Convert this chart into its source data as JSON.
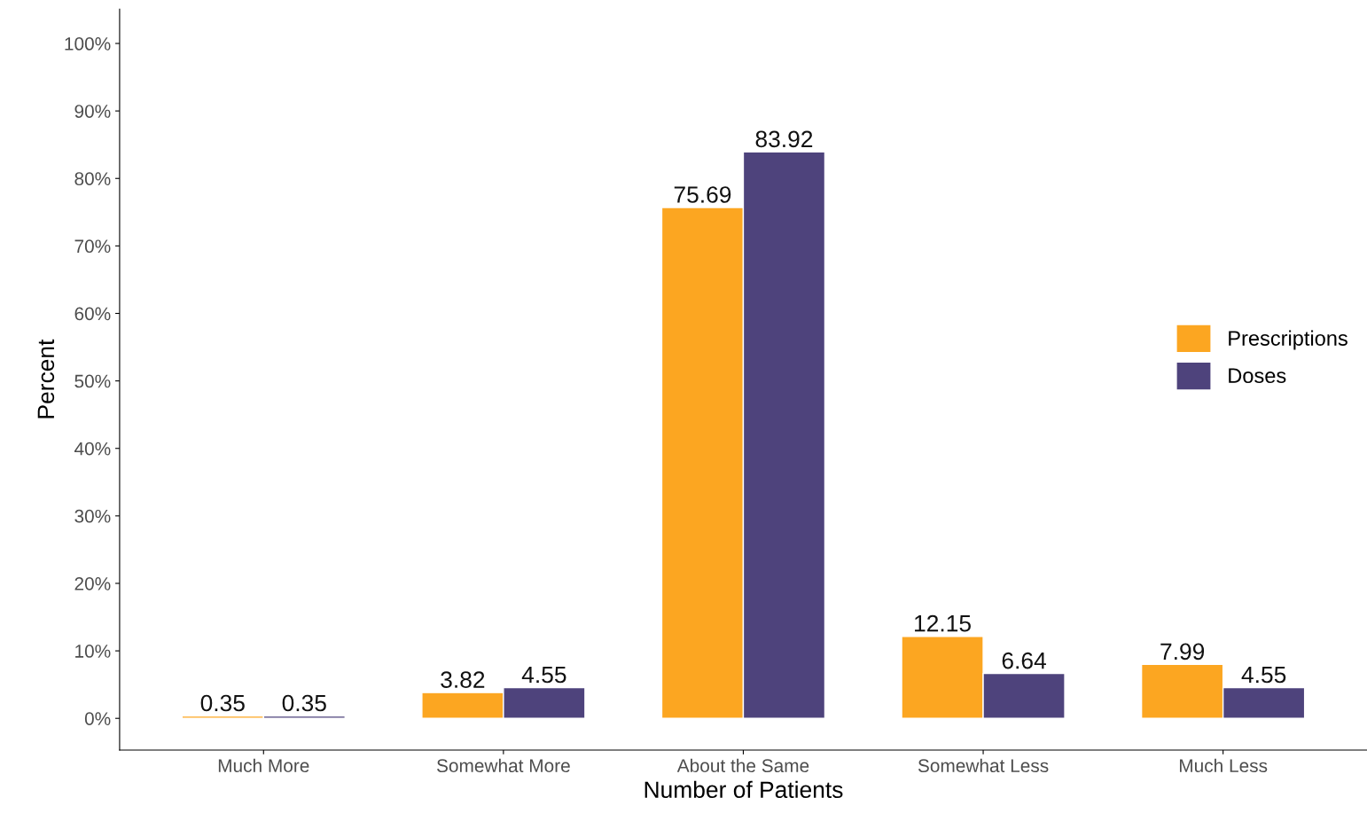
{
  "chart_data": {
    "type": "bar",
    "xlabel": "Number of Patients",
    "ylabel": "Percent",
    "categories": [
      "Much More",
      "Somewhat More",
      "About the Same",
      "Somewhat Less",
      "Much Less"
    ],
    "series": [
      {
        "name": "Prescriptions",
        "color": "#fca621",
        "values": [
          0.35,
          3.82,
          75.69,
          12.15,
          7.99
        ]
      },
      {
        "name": "Doses",
        "color": "#4e437c",
        "values": [
          0.35,
          4.55,
          83.92,
          6.64,
          4.55
        ]
      }
    ],
    "ylim": [
      -4.7,
      105.1
    ],
    "yticks": [
      {
        "value": 0,
        "label": "0%"
      },
      {
        "value": 10,
        "label": "10%"
      },
      {
        "value": 20,
        "label": "20%"
      },
      {
        "value": 30,
        "label": "30%"
      },
      {
        "value": 40,
        "label": "40%"
      },
      {
        "value": 50,
        "label": "50%"
      },
      {
        "value": 60,
        "label": "60%"
      },
      {
        "value": 70,
        "label": "70%"
      },
      {
        "value": 80,
        "label": "80%"
      },
      {
        "value": 90,
        "label": "90%"
      },
      {
        "value": 100,
        "label": "100%"
      }
    ],
    "data_labels": true,
    "legend": "right",
    "grid": false
  }
}
